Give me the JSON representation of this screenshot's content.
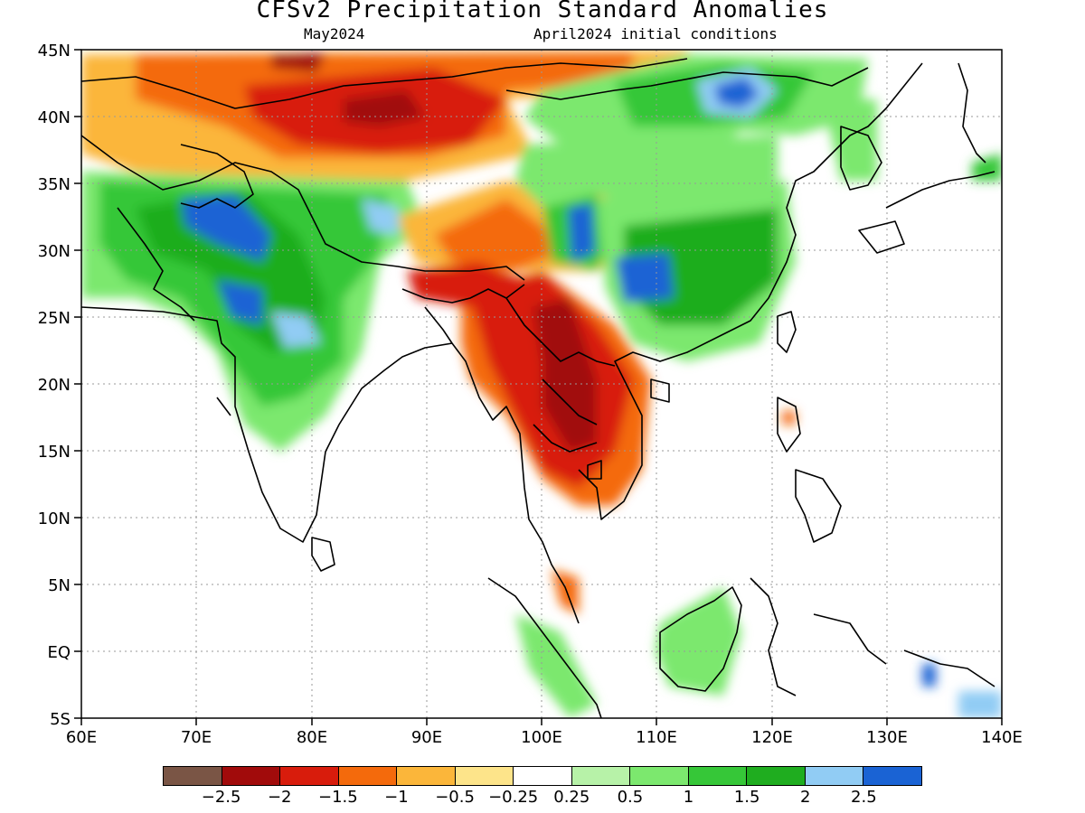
{
  "title": "CFSv2 Precipitation Standard Anomalies",
  "target_month": "May2024",
  "init_label": "April2024 initial conditions",
  "lon_ticks": [
    "60E",
    "70E",
    "80E",
    "90E",
    "100E",
    "110E",
    "120E",
    "130E",
    "140E"
  ],
  "lat_ticks": [
    "45N",
    "40N",
    "35N",
    "30N",
    "25N",
    "20N",
    "15N",
    "10N",
    "5N",
    "EQ",
    "5S"
  ],
  "legend": {
    "colors": [
      "#7a5545",
      "#a10b0b",
      "#d81c0c",
      "#f46a0c",
      "#fbb63a",
      "#fde48a",
      "#ffffff",
      "#b7f2a8",
      "#7ce86e",
      "#36c738",
      "#1fad1f",
      "#91ccf4",
      "#1a63d4"
    ],
    "labels": [
      "−2.5",
      "−2",
      "−1.5",
      "−1",
      "−0.5",
      "−0.25",
      "0.25",
      "0.5",
      "1",
      "1.5",
      "2",
      "2.5"
    ]
  },
  "colors": {
    "land_outline": "#000000",
    "grid": "#999999"
  }
}
